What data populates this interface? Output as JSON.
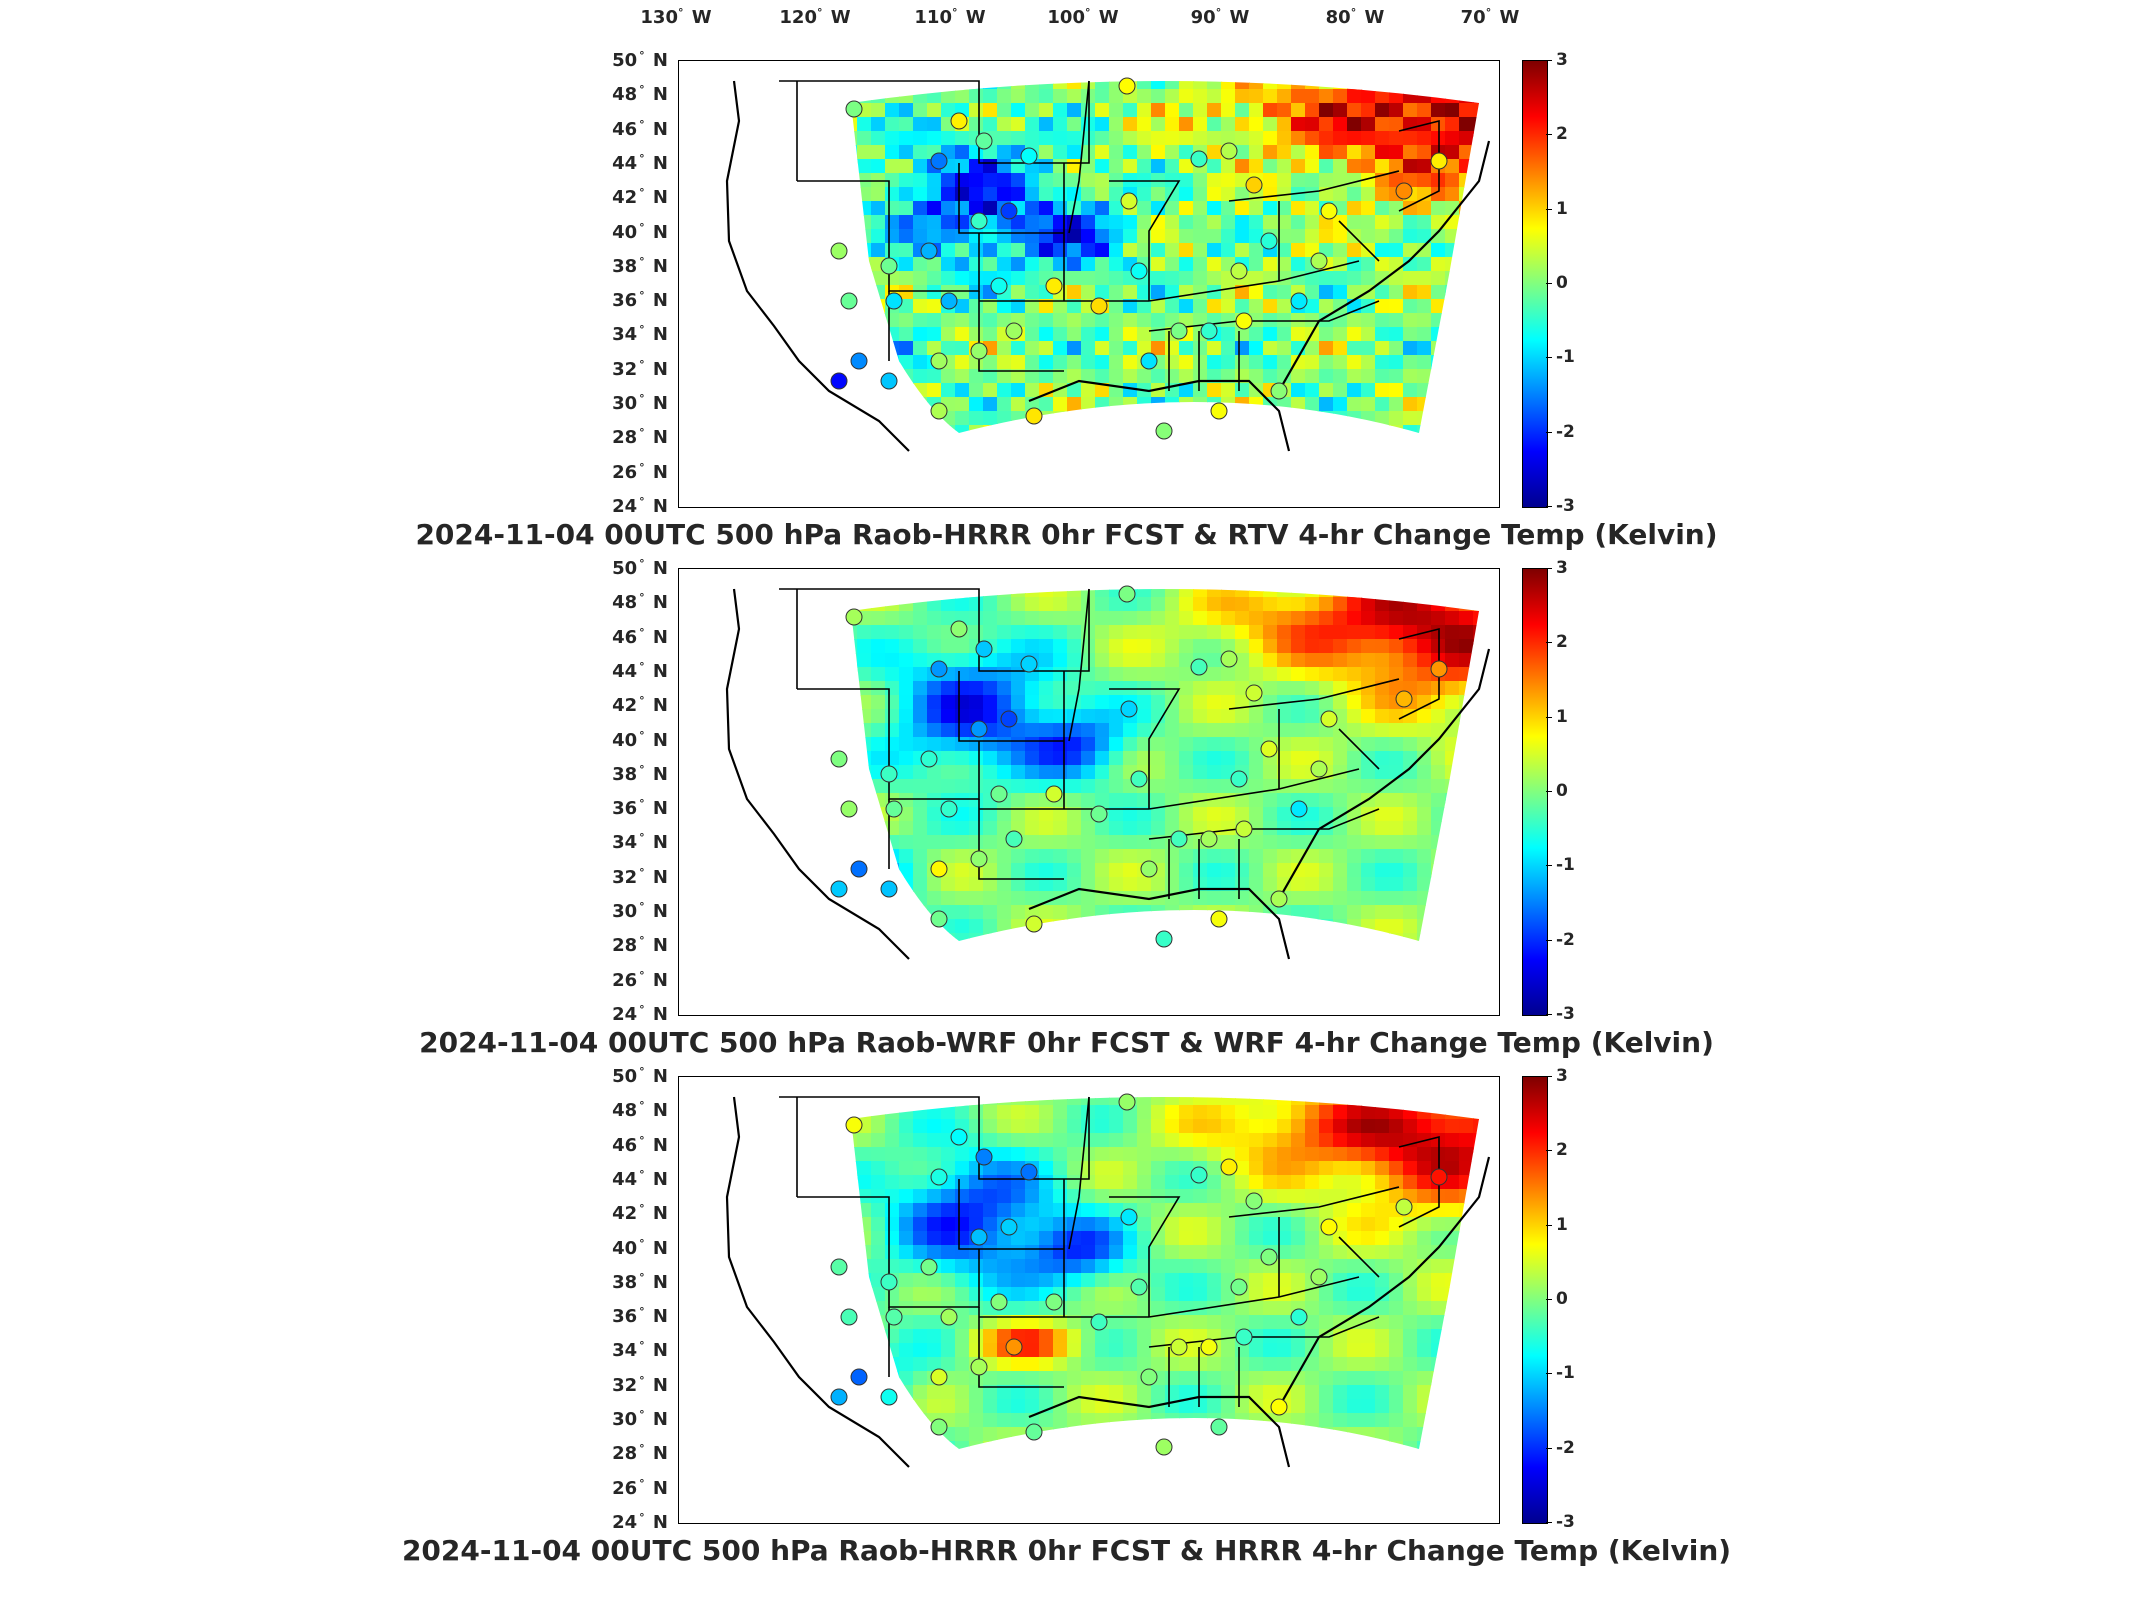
{
  "lon_labels": [
    "130° W",
    "120° W",
    "110° W",
    "100° W",
    "90° W",
    "80° W",
    "70° W"
  ],
  "lat_labels": [
    "50° N",
    "48° N",
    "46° N",
    "44° N",
    "42° N",
    "40° N",
    "38° N",
    "36° N",
    "34° N",
    "32° N",
    "30° N",
    "28° N",
    "26° N",
    "24° N"
  ],
  "colorbar_ticks": [
    "3",
    "2",
    "1",
    "0",
    "-1",
    "-2",
    "-3"
  ],
  "colormap": {
    "type": "jet",
    "min": -3,
    "max": 3,
    "unit": "Kelvin"
  },
  "panels": [
    {
      "title": "2024-11-04 00UTC 500 hPa Raob-HRRR 0hr FCST & RTV 4-hr Change Temp (Kelvin)"
    },
    {
      "title": "2024-11-04 00UTC 500 hPa Raob-WRF 0hr FCST & WRF 4-hr Change Temp (Kelvin)"
    },
    {
      "title": "2024-11-04 00UTC 500 hPa Raob-HRRR 0hr FCST & HRRR 4-hr Change Temp (Kelvin)"
    }
  ]
}
